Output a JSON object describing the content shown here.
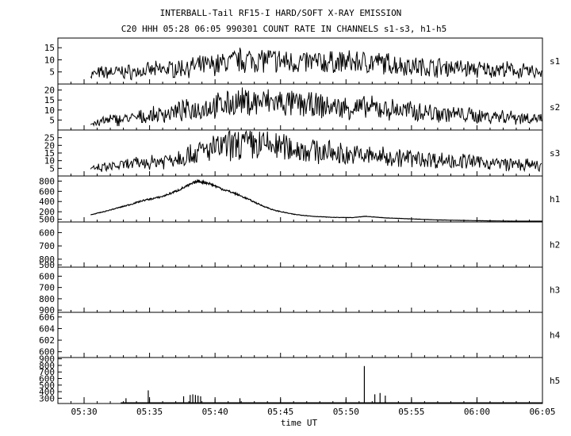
{
  "chart_data": {
    "type": "line",
    "title": "INTERBALL-Tail RF15-I HARD/SOFT X-RAY EMISSION",
    "subtitle": "C20 HHH 05:28 06:05 990301  COUNT RATE IN CHANNELS s1-s3, h1-h5",
    "xlabel": "time UT",
    "x_ticks": [
      "05:30",
      "05:35",
      "05:40",
      "05:45",
      "05:50",
      "05:55",
      "06:00",
      "06:05"
    ],
    "xlim_minutes": [
      28,
      65
    ],
    "grid": false,
    "panels": [
      {
        "channel": "s1",
        "ylim": [
          0,
          19
        ],
        "yticks": [
          "5",
          "10",
          "15"
        ],
        "ytick_values": [
          5,
          10,
          15
        ],
        "x_minutes": [
          30.5,
          32,
          34,
          36,
          38,
          40,
          42,
          44,
          46,
          48,
          50,
          52,
          54,
          56,
          58,
          60,
          62,
          64,
          65
        ],
        "values": [
          4,
          5,
          5,
          6,
          7,
          8,
          10,
          10,
          9,
          9,
          9,
          9,
          8,
          7,
          7,
          6,
          6,
          5,
          5
        ]
      },
      {
        "channel": "s2",
        "ylim": [
          0,
          23
        ],
        "yticks": [
          "5",
          "10",
          "15",
          "20"
        ],
        "ytick_values": [
          5,
          10,
          15,
          20
        ],
        "x_minutes": [
          30.5,
          32,
          34,
          36,
          38,
          40,
          42,
          44,
          46,
          48,
          50,
          52,
          54,
          56,
          58,
          60,
          62,
          64,
          65
        ],
        "values": [
          3,
          5,
          6,
          8,
          10,
          12,
          14,
          14,
          13,
          12,
          11,
          11,
          10,
          9,
          8,
          7,
          7,
          6,
          6
        ]
      },
      {
        "channel": "s3",
        "ylim": [
          0,
          30
        ],
        "yticks": [
          "5",
          "10",
          "15",
          "20",
          "25"
        ],
        "ytick_values": [
          5,
          10,
          15,
          20,
          25
        ],
        "x_minutes": [
          30.5,
          32,
          34,
          36,
          38,
          40,
          42,
          44,
          46,
          48,
          50,
          52,
          54,
          56,
          58,
          60,
          62,
          64,
          65
        ],
        "values": [
          4,
          6,
          8,
          10,
          14,
          18,
          21,
          20,
          18,
          16,
          14,
          13,
          12,
          11,
          10,
          9,
          8,
          7,
          6
        ]
      },
      {
        "channel": "h1",
        "ylim": [
          0,
          900
        ],
        "yticks": [
          "200",
          "400",
          "600",
          "800"
        ],
        "ytick_values": [
          200,
          400,
          600,
          800
        ],
        "x_minutes": [
          30.5,
          31.5,
          32.5,
          33.5,
          34.5,
          35.5,
          36,
          37,
          38,
          38.7,
          39.5,
          40.5,
          41.5,
          42.5,
          43.5,
          44.5,
          46,
          47.5,
          49,
          50.5,
          51.5,
          52,
          53,
          55,
          57,
          60,
          63,
          65
        ],
        "values": [
          140,
          200,
          270,
          340,
          420,
          470,
          500,
          600,
          720,
          800,
          760,
          650,
          560,
          450,
          330,
          230,
          150,
          110,
          90,
          85,
          110,
          100,
          80,
          60,
          40,
          25,
          15,
          10
        ]
      },
      {
        "channel": "h2",
        "ylim": [
          520,
          860
        ],
        "yticks": [
          "500",
          "600",
          "700",
          "800"
        ],
        "ytick_values": [
          500,
          600,
          700,
          800
        ],
        "inverted": true,
        "x_minutes": [],
        "values": []
      },
      {
        "channel": "h3",
        "ylim": [
          520,
          920
        ],
        "yticks": [
          "500",
          "600",
          "700",
          "800",
          "900"
        ],
        "ytick_values": [
          500,
          600,
          700,
          800,
          900
        ],
        "inverted": true,
        "x_minutes": [],
        "values": []
      },
      {
        "channel": "h4",
        "ylim": [
          599,
          606.8
        ],
        "yticks": [
          "600",
          "602",
          "604",
          "606"
        ],
        "ytick_values": [
          600,
          602,
          604,
          606
        ],
        "x_minutes": [],
        "values": []
      },
      {
        "channel": "h5",
        "ylim": [
          220,
          920
        ],
        "yticks": [
          "300",
          "400",
          "500",
          "600",
          "700",
          "800",
          "900"
        ],
        "ytick_values": [
          300,
          400,
          500,
          600,
          700,
          800,
          900
        ],
        "type": "spikes",
        "x_minutes": [
          33.2,
          34.9,
          37.6,
          38.1,
          38.3,
          38.5,
          38.7,
          38.9,
          41.9,
          51.4,
          52.2,
          52.6,
          53.0
        ],
        "values": [
          300,
          420,
          330,
          350,
          360,
          350,
          340,
          330,
          300,
          790,
          360,
          380,
          340
        ]
      }
    ]
  }
}
